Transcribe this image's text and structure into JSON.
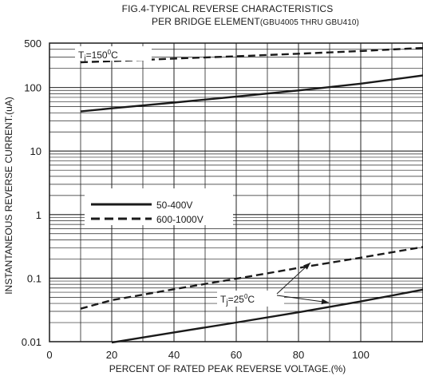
{
  "chart_data": {
    "type": "line",
    "title": "FIG.4-TYPICAL REVERSE CHARACTERISTICS",
    "subtitle_main": "PER  BRIDGE ELEMENT",
    "subtitle_small": "(GBU4005 THRU GBU410)",
    "xlabel": "PERCENT OF RATED PEAK REVERSE VOLTAGE.(%)",
    "ylabel": "INSTANTANEOUS REVERSE CURRENT.(uA)",
    "xlim": [
      0,
      120
    ],
    "ylim": [
      0.01,
      500
    ],
    "yscale": "log",
    "grid": true,
    "x_ticks": [
      0,
      20,
      40,
      60,
      80,
      100
    ],
    "x_tick_labels": [
      "0",
      "20",
      "40",
      "60",
      "80",
      "100"
    ],
    "y_ticks": [
      0.01,
      0.1,
      1,
      10,
      100,
      500
    ],
    "y_tick_labels": [
      "0.01",
      "0.1",
      "1",
      "10",
      "100",
      "500"
    ],
    "legend": {
      "position": "center-left",
      "entries": [
        {
          "label": "50-400V",
          "style": "solid"
        },
        {
          "label": "600-1000V",
          "style": "dashed"
        }
      ]
    },
    "annotations": {
      "hot": {
        "prefix": "T",
        "sub": "j",
        "eq": "=150",
        "sup": "0",
        "unit": "C"
      },
      "cold": {
        "prefix": "T",
        "sub": "j",
        "eq": "=25",
        "sup": "0",
        "unit": "C"
      }
    },
    "series": [
      {
        "group": "hot",
        "style": "solid",
        "x": [
          10,
          20,
          40,
          60,
          80,
          100,
          120
        ],
        "y": [
          42,
          47,
          58,
          72,
          90,
          115,
          155
        ]
      },
      {
        "group": "hot",
        "style": "dashed",
        "x": [
          10,
          20,
          40,
          60,
          80,
          100,
          120
        ],
        "y": [
          250,
          260,
          285,
          310,
          340,
          375,
          420
        ]
      },
      {
        "group": "cold",
        "style": "solid",
        "x": [
          20,
          40,
          60,
          80,
          100,
          120
        ],
        "y": [
          0.0097,
          0.014,
          0.02,
          0.029,
          0.043,
          0.066
        ]
      },
      {
        "group": "cold",
        "style": "dashed",
        "x": [
          10,
          20,
          40,
          60,
          80,
          100,
          120
        ],
        "y": [
          0.033,
          0.045,
          0.067,
          0.098,
          0.145,
          0.21,
          0.31
        ]
      }
    ],
    "colors": {
      "line": "#1a1a1a",
      "grid": "#222222",
      "background": "#ffffff"
    }
  }
}
